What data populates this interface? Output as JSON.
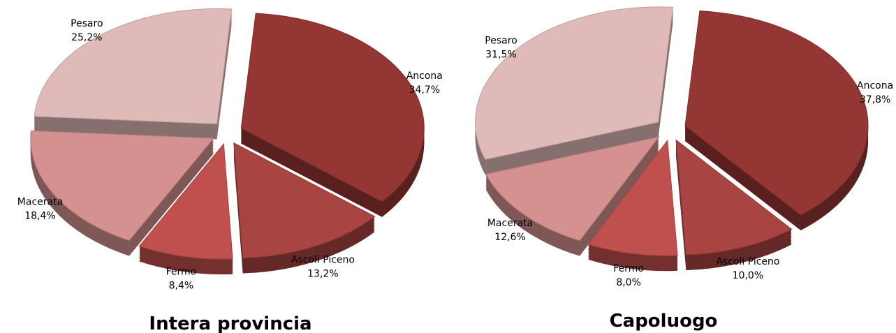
{
  "chart_data": [
    {
      "type": "pie",
      "title": "Intera provincia",
      "categories": [
        "Ancona",
        "Ascoli Piceno",
        "Fermo",
        "Macerata",
        "Pesaro"
      ],
      "values": [
        34.7,
        13.2,
        8.4,
        18.4,
        25.2
      ],
      "value_labels": [
        "34,7%",
        "13,2%",
        "8,4%",
        "18,4%",
        "25,2%"
      ],
      "colors": [
        "#943634",
        "#a84441",
        "#c0504d",
        "#d49190",
        "#e0bab9"
      ]
    },
    {
      "type": "pie",
      "title": "Capoluogo",
      "categories": [
        "Ancona",
        "Ascoli Piceno",
        "Fermo",
        "Macerata",
        "Pesaro"
      ],
      "values": [
        37.8,
        10.0,
        8.0,
        12.6,
        31.5
      ],
      "value_labels": [
        "37,8%",
        "10,0%",
        "8,0%",
        "12,6%",
        "31,5%"
      ],
      "colors": [
        "#943634",
        "#a84441",
        "#c0504d",
        "#d49190",
        "#e0bab9"
      ]
    }
  ]
}
